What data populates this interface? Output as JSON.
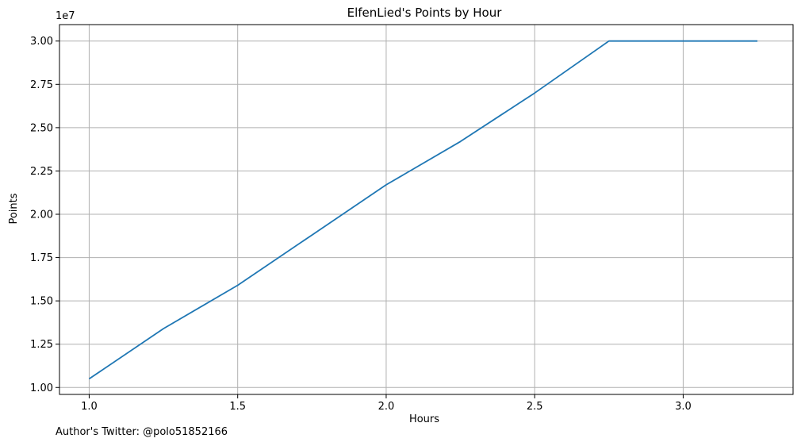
{
  "chart_data": {
    "type": "line",
    "title": "ElfenLied's Points by Hour",
    "xlabel": "Hours",
    "ylabel": "Points",
    "y_scale_label": "1e7",
    "xlim": [
      0.9,
      3.37
    ],
    "ylim": [
      9600000,
      30950000
    ],
    "x_ticks": [
      1.0,
      1.5,
      2.0,
      2.5,
      3.0
    ],
    "x_tick_labels": [
      "1.0",
      "1.5",
      "2.0",
      "2.5",
      "3.0"
    ],
    "y_ticks": [
      10000000,
      12500000,
      15000000,
      17500000,
      20000000,
      22500000,
      25000000,
      27500000,
      30000000
    ],
    "y_tick_labels": [
      "1.00",
      "1.25",
      "1.50",
      "1.75",
      "2.00",
      "2.25",
      "2.50",
      "2.75",
      "3.00"
    ],
    "grid": true,
    "line_color": "#1f77b4",
    "series": [
      {
        "x": [
          1.0,
          1.25,
          1.5,
          1.75,
          2.0,
          2.25,
          2.5,
          2.75,
          3.0,
          3.25
        ],
        "y": [
          10500000,
          13400000,
          15900000,
          18800000,
          21700000,
          24200000,
          27000000,
          30000000,
          30000000,
          30000000
        ]
      }
    ]
  },
  "footer": {
    "author": "Author's Twitter: @polo51852166"
  }
}
